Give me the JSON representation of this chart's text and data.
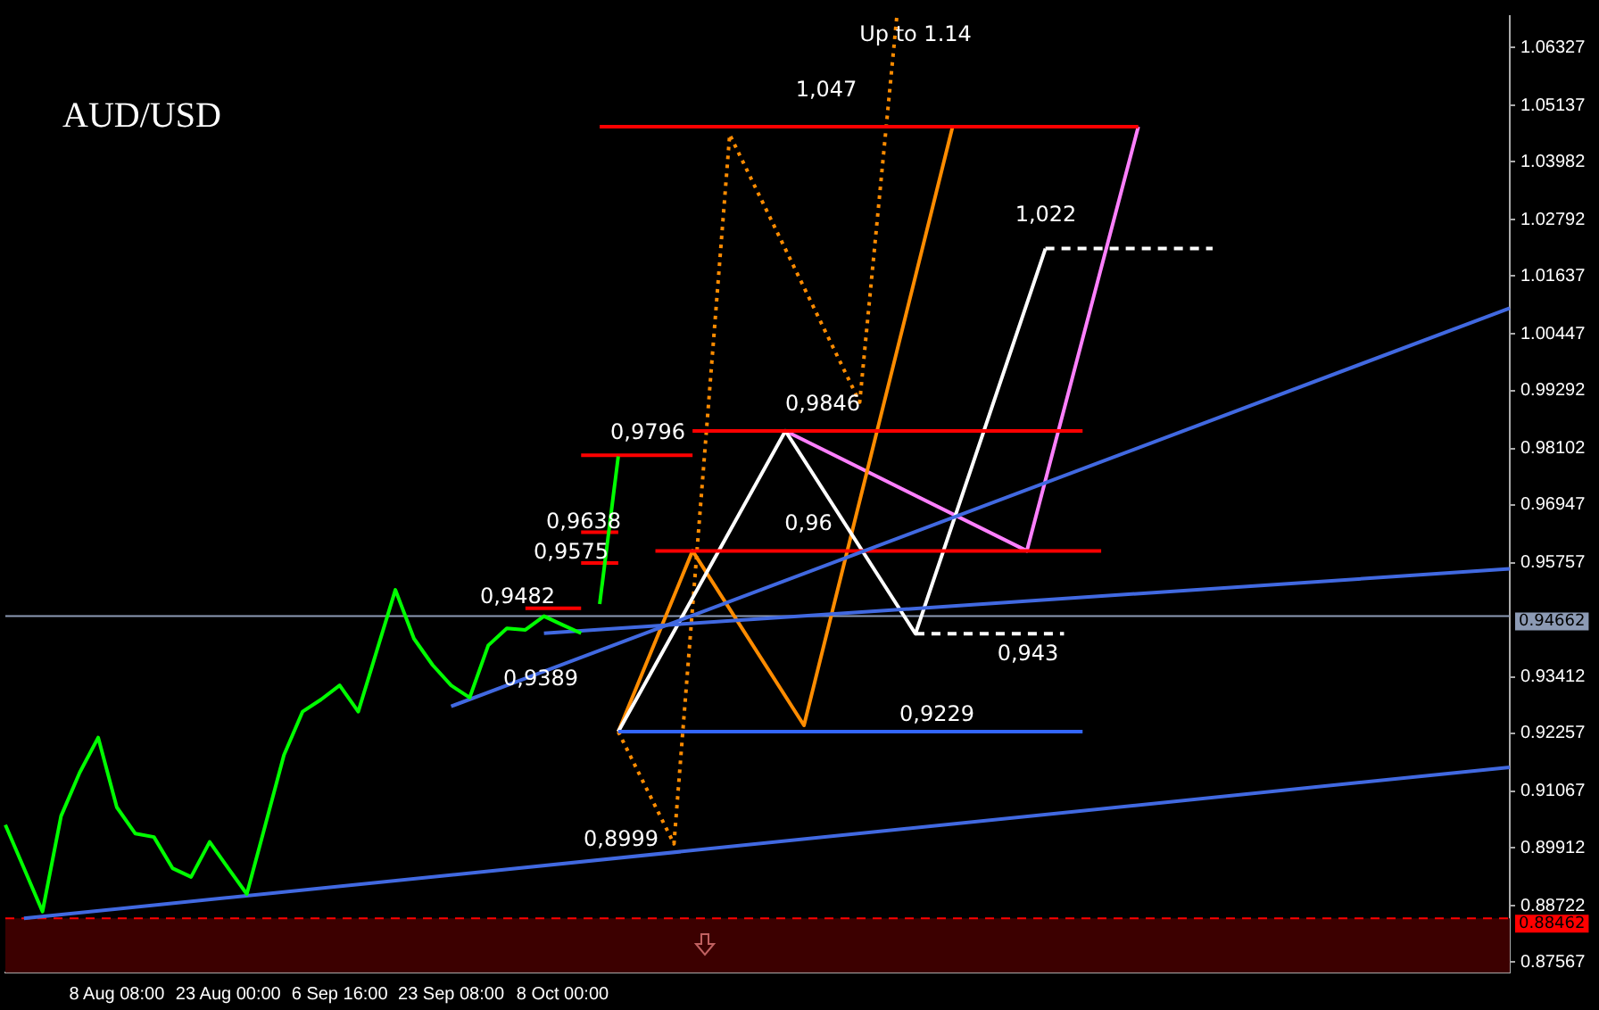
{
  "chart_data": {
    "type": "line",
    "title": "AUD/USD",
    "ylim": [
      0.8735,
      1.0697
    ],
    "categories": [
      null,
      null,
      null,
      null,
      null,
      null,
      "8 Aug 08:00",
      null,
      null,
      null,
      null,
      null,
      "23 Aug 00:00",
      null,
      null,
      null,
      null,
      null,
      "6 Sep 16:00",
      null,
      null,
      null,
      null,
      null,
      "23 Sep 08:00",
      null,
      null,
      null,
      null,
      null,
      "8 Oct 00:00",
      null,
      null,
      null,
      null,
      null,
      null,
      null,
      null,
      null,
      null,
      null,
      null,
      null,
      null,
      null,
      null,
      null,
      null,
      null,
      null,
      null,
      null,
      null,
      null,
      null,
      null,
      null,
      null,
      null,
      null,
      null,
      null,
      null,
      null,
      null,
      null,
      null,
      null,
      null,
      null,
      null,
      null,
      null,
      null,
      null,
      null,
      null,
      null,
      null,
      null,
      null
    ],
    "yticks": [
      0.87567,
      0.88722,
      0.89912,
      0.91067,
      0.92257,
      0.93412,
      0.95757,
      0.96947,
      0.98102,
      0.99292,
      1.00447,
      1.01637,
      1.02792,
      1.03982,
      1.05137,
      1.06327
    ],
    "grid": false,
    "legend": false,
    "series": [
      {
        "color": "#00ff00",
        "values": [
          0.9038,
          0.8949,
          0.886,
          0.9056,
          0.9145,
          0.9217,
          0.9074,
          0.902,
          0.9013,
          0.8949,
          0.8931,
          0.9003,
          0.8949,
          0.8896,
          0.9038,
          0.9181,
          0.927,
          0.9295,
          0.9324,
          0.927,
          0.9395,
          0.952,
          0.942,
          0.9366,
          0.9324,
          0.9299,
          0.9406,
          0.9441,
          0.9438,
          0.9466,
          0.9448,
          0.9431,
          null,
          null,
          null,
          null,
          null,
          null,
          null,
          null,
          null,
          null,
          null,
          null,
          null,
          null,
          null,
          null,
          null,
          null,
          null,
          null,
          null,
          null,
          null,
          null,
          null,
          null,
          null,
          null,
          null,
          null,
          null,
          null,
          null,
          null,
          null,
          null,
          null,
          null,
          null,
          null,
          null,
          null,
          null,
          null,
          null,
          null,
          null,
          null,
          null,
          null
        ]
      },
      {
        "color": "#00ff00",
        "values": [
          null,
          null,
          null,
          null,
          null,
          null,
          null,
          null,
          null,
          null,
          null,
          null,
          null,
          null,
          null,
          null,
          null,
          null,
          null,
          null,
          null,
          null,
          null,
          null,
          null,
          null,
          null,
          null,
          null,
          null,
          null,
          null,
          0.9491,
          0.9794,
          null,
          null,
          null,
          null,
          null,
          null,
          null,
          null,
          null,
          null,
          null,
          null,
          null,
          null,
          null,
          null,
          null,
          null,
          null,
          null,
          null,
          null,
          null,
          null,
          null,
          null,
          null,
          null,
          null,
          null,
          null,
          null,
          null,
          null,
          null,
          null,
          null,
          null,
          null,
          null,
          null,
          null,
          null,
          null,
          null,
          null,
          null,
          null
        ]
      },
      {
        "color": "#4169e1",
        "values": [
          null,
          0.8846,
          null,
          null,
          null,
          null,
          null,
          null,
          null,
          null,
          null,
          null,
          null,
          null,
          null,
          null,
          null,
          null,
          null,
          null,
          null,
          null,
          null,
          null,
          null,
          null,
          null,
          null,
          null,
          null,
          null,
          null,
          null,
          null,
          null,
          null,
          null,
          null,
          null,
          null,
          null,
          null,
          null,
          null,
          null,
          null,
          null,
          null,
          null,
          null,
          null,
          null,
          null,
          null,
          null,
          null,
          null,
          null,
          null,
          null,
          null,
          null,
          null,
          null,
          null,
          null,
          null,
          null,
          null,
          null,
          null,
          null,
          null,
          null,
          null,
          null,
          null,
          null,
          null,
          null,
          null,
          0.9156
        ]
      },
      {
        "color": "#4169e1",
        "values": [
          null,
          null,
          null,
          null,
          null,
          null,
          null,
          null,
          null,
          null,
          null,
          null,
          null,
          null,
          null,
          null,
          null,
          null,
          null,
          null,
          null,
          null,
          null,
          null,
          0.9281,
          null,
          null,
          null,
          null,
          null,
          null,
          null,
          null,
          null,
          null,
          null,
          null,
          null,
          null,
          null,
          null,
          null,
          null,
          null,
          null,
          null,
          null,
          null,
          null,
          null,
          null,
          null,
          null,
          null,
          null,
          null,
          null,
          null,
          null,
          null,
          null,
          null,
          null,
          null,
          null,
          null,
          null,
          null,
          null,
          null,
          null,
          null,
          null,
          null,
          null,
          null,
          null,
          null,
          null,
          null,
          null,
          1.0098
        ]
      },
      {
        "color": "#4169e1",
        "values": [
          null,
          null,
          null,
          null,
          null,
          null,
          null,
          null,
          null,
          null,
          null,
          null,
          null,
          null,
          null,
          null,
          null,
          null,
          null,
          null,
          null,
          null,
          null,
          null,
          null,
          null,
          null,
          null,
          null,
          0.9431,
          null,
          null,
          null,
          null,
          null,
          null,
          null,
          null,
          null,
          null,
          null,
          null,
          null,
          null,
          null,
          null,
          null,
          null,
          null,
          null,
          null,
          null,
          null,
          null,
          null,
          null,
          null,
          null,
          null,
          null,
          null,
          null,
          null,
          null,
          null,
          null,
          null,
          null,
          null,
          null,
          null,
          null,
          null,
          null,
          null,
          null,
          null,
          null,
          null,
          null,
          null,
          0.9563
        ]
      },
      {
        "color": "#ff0000",
        "values": [
          null,
          null,
          null,
          null,
          null,
          null,
          null,
          null,
          null,
          null,
          null,
          null,
          null,
          null,
          null,
          null,
          null,
          null,
          null,
          null,
          null,
          null,
          null,
          null,
          null,
          null,
          null,
          null,
          null,
          null,
          null,
          null,
          1.047,
          null,
          null,
          null,
          null,
          null,
          null,
          null,
          null,
          null,
          null,
          null,
          null,
          null,
          null,
          null,
          null,
          null,
          null,
          null,
          null,
          null,
          null,
          null,
          null,
          null,
          null,
          null,
          null,
          1.047,
          null,
          null,
          null,
          null,
          null,
          null,
          null,
          null,
          null,
          null,
          null,
          null,
          null,
          null,
          null,
          null,
          null,
          null,
          null,
          null
        ]
      },
      {
        "color": "#ff0000",
        "values": [
          null,
          null,
          null,
          null,
          null,
          null,
          null,
          null,
          null,
          null,
          null,
          null,
          null,
          null,
          null,
          null,
          null,
          null,
          null,
          null,
          null,
          null,
          null,
          null,
          null,
          null,
          null,
          null,
          null,
          null,
          null,
          null,
          null,
          null,
          null,
          null,
          null,
          0.9846,
          null,
          null,
          null,
          null,
          null,
          null,
          null,
          null,
          null,
          null,
          null,
          null,
          null,
          null,
          null,
          null,
          null,
          null,
          null,
          null,
          0.9846,
          null,
          null,
          null,
          null,
          null,
          null,
          null,
          null,
          null,
          null,
          null,
          null,
          null,
          null,
          null,
          null,
          null,
          null,
          null,
          null,
          null,
          null,
          null
        ]
      },
      {
        "color": "#ff0000",
        "values": [
          null,
          null,
          null,
          null,
          null,
          null,
          null,
          null,
          null,
          null,
          null,
          null,
          null,
          null,
          null,
          null,
          null,
          null,
          null,
          null,
          null,
          null,
          null,
          null,
          null,
          null,
          null,
          null,
          null,
          null,
          null,
          null,
          null,
          null,
          null,
          0.96,
          null,
          null,
          null,
          null,
          null,
          null,
          null,
          null,
          null,
          null,
          null,
          null,
          null,
          null,
          null,
          null,
          null,
          null,
          null,
          null,
          null,
          null,
          null,
          0.96,
          null,
          null,
          null,
          null,
          null,
          null,
          null,
          null,
          null,
          null,
          null,
          null,
          null,
          null,
          null,
          null,
          null,
          null,
          null,
          null,
          null,
          null
        ]
      },
      {
        "color": "#ff0000",
        "values": [
          null,
          null,
          null,
          null,
          null,
          null,
          null,
          null,
          null,
          null,
          null,
          null,
          null,
          null,
          null,
          null,
          null,
          null,
          null,
          null,
          null,
          null,
          null,
          null,
          null,
          null,
          null,
          null,
          null,
          null,
          null,
          0.9796,
          null,
          null,
          null,
          null,
          null,
          0.9796,
          null,
          null,
          null,
          null,
          null,
          null,
          null,
          null,
          null,
          null,
          null,
          null,
          null,
          null,
          null,
          null,
          null,
          null,
          null,
          null,
          null,
          null,
          null,
          null,
          null,
          null,
          null,
          null,
          null,
          null,
          null,
          null,
          null,
          null,
          null,
          null,
          null,
          null,
          null,
          null,
          null,
          null,
          null,
          null
        ]
      },
      {
        "color": "#ff0000",
        "values": [
          null,
          null,
          null,
          null,
          null,
          null,
          null,
          null,
          null,
          null,
          null,
          null,
          null,
          null,
          null,
          null,
          null,
          null,
          null,
          null,
          null,
          null,
          null,
          null,
          null,
          null,
          null,
          null,
          null,
          null,
          null,
          0.9638,
          null,
          0.9638,
          null,
          null,
          null,
          null,
          null,
          null,
          null,
          null,
          null,
          null,
          null,
          null,
          null,
          null,
          null,
          null,
          null,
          null,
          null,
          null,
          null,
          null,
          null,
          null,
          null,
          null,
          null,
          null,
          null,
          null,
          null,
          null,
          null,
          null,
          null,
          null,
          null,
          null,
          null,
          null,
          null,
          null,
          null,
          null,
          null,
          null,
          null,
          null
        ]
      },
      {
        "color": "#ff0000",
        "values": [
          null,
          null,
          null,
          null,
          null,
          null,
          null,
          null,
          null,
          null,
          null,
          null,
          null,
          null,
          null,
          null,
          null,
          null,
          null,
          null,
          null,
          null,
          null,
          null,
          null,
          null,
          null,
          null,
          null,
          null,
          null,
          0.9575,
          null,
          0.9575,
          null,
          null,
          null,
          null,
          null,
          null,
          null,
          null,
          null,
          null,
          null,
          null,
          null,
          null,
          null,
          null,
          null,
          null,
          null,
          null,
          null,
          null,
          null,
          null,
          null,
          null,
          null,
          null,
          null,
          null,
          null,
          null,
          null,
          null,
          null,
          null,
          null,
          null,
          null,
          null,
          null,
          null,
          null,
          null,
          null,
          null,
          null,
          null
        ]
      },
      {
        "color": "#ff0000",
        "values": [
          null,
          null,
          null,
          null,
          null,
          null,
          null,
          null,
          null,
          null,
          null,
          null,
          null,
          null,
          null,
          null,
          null,
          null,
          null,
          null,
          null,
          null,
          null,
          null,
          null,
          null,
          null,
          null,
          0.9482,
          null,
          null,
          0.9482,
          null,
          null,
          null,
          null,
          null,
          null,
          null,
          null,
          null,
          null,
          null,
          null,
          null,
          null,
          null,
          null,
          null,
          null,
          null,
          null,
          null,
          null,
          null,
          null,
          null,
          null,
          null,
          null,
          null,
          null,
          null,
          null,
          null,
          null,
          null,
          null,
          null,
          null,
          null,
          null,
          null,
          null,
          null,
          null,
          null,
          null,
          null,
          null,
          null,
          null
        ]
      },
      {
        "color": "#3366ff",
        "values": [
          null,
          null,
          null,
          null,
          null,
          null,
          null,
          null,
          null,
          null,
          null,
          null,
          null,
          null,
          null,
          null,
          null,
          null,
          null,
          null,
          null,
          null,
          null,
          null,
          null,
          null,
          null,
          null,
          null,
          null,
          null,
          null,
          null,
          0.9229,
          null,
          null,
          null,
          null,
          null,
          null,
          null,
          null,
          null,
          null,
          null,
          null,
          null,
          null,
          null,
          null,
          null,
          null,
          null,
          null,
          null,
          null,
          null,
          null,
          0.9229,
          null,
          null,
          null,
          null,
          null,
          null,
          null,
          null,
          null,
          null,
          null,
          null,
          null,
          null,
          null,
          null,
          null,
          null,
          null,
          null,
          null,
          null,
          null
        ]
      },
      {
        "color": "#ffffff",
        "line_style": "dashed",
        "values": [
          null,
          null,
          null,
          null,
          null,
          null,
          null,
          null,
          null,
          null,
          null,
          null,
          null,
          null,
          null,
          null,
          null,
          null,
          null,
          null,
          null,
          null,
          null,
          null,
          null,
          null,
          null,
          null,
          null,
          null,
          null,
          null,
          null,
          null,
          null,
          null,
          null,
          null,
          null,
          null,
          null,
          null,
          null,
          null,
          null,
          null,
          null,
          null,
          null,
          null,
          null,
          null,
          null,
          null,
          null,
          null,
          1.022,
          null,
          null,
          null,
          null,
          null,
          null,
          null,
          null,
          1.022,
          null,
          null,
          null,
          null,
          null,
          null,
          null,
          null,
          null,
          null,
          null,
          null,
          null,
          null,
          null,
          null
        ]
      },
      {
        "color": "#ffffff",
        "line_style": "dashed",
        "values": [
          null,
          null,
          null,
          null,
          null,
          null,
          null,
          null,
          null,
          null,
          null,
          null,
          null,
          null,
          null,
          null,
          null,
          null,
          null,
          null,
          null,
          null,
          null,
          null,
          null,
          null,
          null,
          null,
          null,
          null,
          null,
          null,
          null,
          null,
          null,
          null,
          null,
          null,
          null,
          null,
          null,
          null,
          null,
          null,
          null,
          null,
          null,
          null,
          null,
          0.943,
          null,
          null,
          null,
          null,
          null,
          null,
          null,
          0.943,
          null,
          null,
          null,
          null,
          null,
          null,
          null,
          null,
          null,
          null,
          null,
          null,
          null,
          null,
          null,
          null,
          null,
          null,
          null,
          null,
          null,
          null,
          null,
          null
        ]
      },
      {
        "color": "#ffffff",
        "values": [
          null,
          null,
          null,
          null,
          null,
          null,
          null,
          null,
          null,
          null,
          null,
          null,
          null,
          null,
          null,
          null,
          null,
          null,
          null,
          null,
          null,
          null,
          null,
          null,
          null,
          null,
          null,
          null,
          null,
          null,
          null,
          null,
          null,
          0.9229,
          null,
          null,
          null,
          null,
          null,
          null,
          null,
          null,
          0.9846,
          null,
          null,
          null,
          null,
          null,
          null,
          0.943,
          null,
          null,
          null,
          null,
          null,
          null,
          1.022,
          null,
          null,
          null,
          null,
          null,
          null,
          null,
          null,
          null,
          null,
          null,
          null,
          null,
          null,
          null,
          null,
          null,
          null,
          null,
          null,
          null,
          null,
          null,
          null,
          null
        ]
      },
      {
        "color": "#ff8c00",
        "values": [
          null,
          null,
          null,
          null,
          null,
          null,
          null,
          null,
          null,
          null,
          null,
          null,
          null,
          null,
          null,
          null,
          null,
          null,
          null,
          null,
          null,
          null,
          null,
          null,
          null,
          null,
          null,
          null,
          null,
          null,
          null,
          null,
          null,
          0.9229,
          null,
          null,
          null,
          0.96,
          null,
          null,
          null,
          null,
          null,
          0.9242,
          null,
          null,
          null,
          null,
          null,
          null,
          null,
          1.047,
          null,
          null,
          null,
          null,
          null,
          null,
          null,
          null,
          null,
          null,
          null,
          null,
          null,
          null,
          null,
          null,
          null,
          null,
          null,
          null,
          null,
          null,
          null,
          null,
          null,
          null,
          null,
          null,
          null,
          null
        ]
      },
      {
        "color": "#ff8c00",
        "line_style": "dotted",
        "values": [
          null,
          null,
          null,
          null,
          null,
          null,
          null,
          null,
          null,
          null,
          null,
          null,
          null,
          null,
          null,
          null,
          null,
          null,
          null,
          null,
          null,
          null,
          null,
          null,
          null,
          null,
          null,
          null,
          null,
          null,
          null,
          null,
          null,
          0.9229,
          null,
          null,
          0.8999,
          null,
          null,
          1.0454,
          null,
          null,
          null,
          null,
          null,
          null,
          0.9905,
          null,
          1.0697,
          null,
          null,
          null,
          null,
          null,
          null,
          null,
          null,
          null,
          null,
          null,
          null,
          null,
          null,
          null,
          null,
          null,
          null,
          null,
          null,
          null,
          null,
          null,
          null,
          null,
          null,
          null,
          null,
          null,
          null,
          null,
          null,
          null
        ]
      },
      {
        "color": "#ff80ff",
        "values": [
          null,
          null,
          null,
          null,
          null,
          null,
          null,
          null,
          null,
          null,
          null,
          null,
          null,
          null,
          null,
          null,
          null,
          null,
          null,
          null,
          null,
          null,
          null,
          null,
          null,
          null,
          null,
          null,
          null,
          null,
          null,
          null,
          null,
          null,
          null,
          null,
          null,
          null,
          null,
          null,
          null,
          null,
          0.9846,
          null,
          null,
          null,
          null,
          null,
          null,
          null,
          null,
          null,
          null,
          null,
          null,
          0.96,
          null,
          null,
          null,
          null,
          null,
          1.047,
          null,
          null,
          null,
          null,
          null,
          null,
          null,
          null,
          null,
          null,
          null,
          null,
          null,
          null,
          null,
          null,
          null,
          null,
          null,
          null
        ]
      }
    ],
    "ref_lines": [
      {
        "axis": "y",
        "value": 0.94662,
        "label": "0.94662",
        "color": "#8c9ab4",
        "line_style": "solid"
      },
      {
        "axis": "y",
        "value": 0.88462,
        "label": "0.88462",
        "color": "#ff0000",
        "line_style": "dashed"
      }
    ],
    "bands": [
      {
        "axis": "y",
        "from": 0.8735,
        "to": 0.8846,
        "color": "#3c0000"
      }
    ],
    "annotations": [
      "Up to 1.14",
      "1,047",
      "1,022",
      "0,9846",
      "0,9796",
      "0,96",
      "0,9638",
      "0,9575",
      "0,9482",
      "0,9389",
      "0,943",
      "0,9229",
      "0,8999"
    ]
  }
}
